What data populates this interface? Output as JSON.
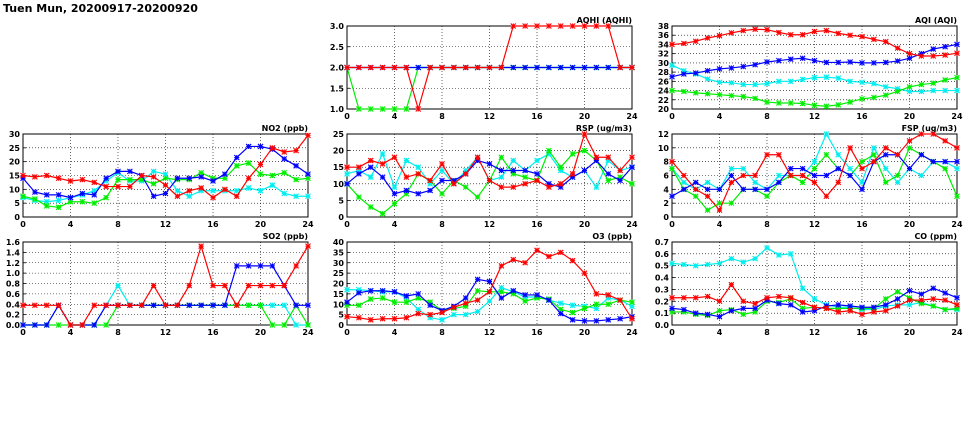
{
  "title": "Tuen Mun, 20200917-20200920",
  "colors": {
    "red": "#ff0000",
    "blue": "#0000ff",
    "green": "#00ee00",
    "cyan": "#00eeee"
  },
  "chart_data": [
    {
      "type": "line",
      "title": "AQHI (AQHI)",
      "ylim": [
        1,
        3
      ],
      "yticks": [
        "1.0",
        "1.5",
        "2.0",
        "2.5",
        "3.0"
      ],
      "xlim": [
        0,
        24
      ],
      "xticks": [
        "0",
        "4",
        "8",
        "12",
        "16",
        "20",
        "24"
      ],
      "series": [
        {
          "color": "cyan",
          "values": [
            2,
            2,
            2,
            2,
            2,
            2,
            2,
            2,
            2,
            2,
            2,
            2,
            2,
            2,
            2,
            2,
            2,
            2,
            2,
            2,
            2,
            2,
            2,
            2,
            2
          ]
        },
        {
          "color": "green",
          "values": [
            2,
            1,
            1,
            1,
            1,
            1,
            2,
            2,
            2,
            2,
            2,
            2,
            2,
            2,
            2,
            2,
            2,
            2,
            2,
            2,
            2,
            2,
            2,
            2,
            2
          ]
        },
        {
          "color": "blue",
          "values": [
            2,
            2,
            2,
            2,
            2,
            2,
            2,
            2,
            2,
            2,
            2,
            2,
            2,
            2,
            2,
            2,
            2,
            2,
            2,
            2,
            2,
            2,
            2,
            2,
            2
          ]
        },
        {
          "color": "red",
          "values": [
            2,
            2,
            2,
            2,
            2,
            2,
            1,
            2,
            2,
            2,
            2,
            2,
            2,
            2,
            3,
            3,
            3,
            3,
            3,
            3,
            3,
            3,
            3,
            2,
            2
          ]
        }
      ]
    },
    {
      "type": "line",
      "title": "AQI (AQI)",
      "ylim": [
        20,
        38
      ],
      "yticks": [
        "20",
        "22",
        "24",
        "26",
        "28",
        "30",
        "32",
        "34",
        "36",
        "38"
      ],
      "xlim": [
        0,
        24
      ],
      "xticks": [
        "0",
        "4",
        "8",
        "12",
        "16",
        "20",
        "24"
      ],
      "series": [
        {
          "color": "cyan",
          "values": [
            29.5,
            28.3,
            27.6,
            26.5,
            25.8,
            25.7,
            25.3,
            25.3,
            25.5,
            26,
            26,
            26.4,
            26.8,
            26.9,
            26.7,
            26,
            25.8,
            25.5,
            24.8,
            24.4,
            23.8,
            23.8,
            24,
            24,
            24
          ]
        },
        {
          "color": "green",
          "values": [
            24,
            23.8,
            23.5,
            23.3,
            23.1,
            22.9,
            22.7,
            22.3,
            21.5,
            21.3,
            21.3,
            21.2,
            20.8,
            20.6,
            20.9,
            21.5,
            22.2,
            22.5,
            23,
            23.8,
            24.8,
            25.3,
            25.6,
            26.3,
            26.8
          ]
        },
        {
          "color": "blue",
          "values": [
            27,
            27.6,
            27.8,
            28.3,
            28.7,
            28.9,
            29.2,
            29.6,
            30.2,
            30.5,
            30.8,
            31,
            30.5,
            30.1,
            30.1,
            30.2,
            30,
            30,
            30.1,
            30.4,
            31,
            32,
            33,
            33.5,
            34
          ]
        },
        {
          "color": "red",
          "values": [
            34,
            34.2,
            34.7,
            35.4,
            35.9,
            36.5,
            37,
            37.3,
            37.2,
            36.6,
            36.1,
            36.1,
            36.8,
            37,
            36.4,
            36,
            35.7,
            35.1,
            34.6,
            33.2,
            32,
            31.5,
            31.5,
            31.7,
            32.1
          ]
        }
      ]
    },
    {
      "type": "line",
      "title": "NO2 (ppb)",
      "ylim": [
        0,
        30
      ],
      "yticks": [
        "0",
        "5",
        "10",
        "15",
        "20",
        "25",
        "30"
      ],
      "xlim": [
        0,
        24
      ],
      "xticks": [
        "0",
        "4",
        "8",
        "12",
        "16",
        "20",
        "24"
      ],
      "series": [
        {
          "color": "cyan",
          "values": [
            7,
            6,
            5.5,
            6,
            7,
            8,
            9.5,
            13,
            16,
            13,
            13,
            16.5,
            15.5,
            9.5,
            7.5,
            9.5,
            9.5,
            9.5,
            9.5,
            10.5,
            9.5,
            11.5,
            8.5,
            7.5,
            7.5
          ]
        },
        {
          "color": "green",
          "values": [
            7.5,
            6.5,
            4,
            3.5,
            5.5,
            5.5,
            5,
            7,
            13.5,
            13.5,
            13.5,
            12,
            14,
            13.5,
            13.5,
            16,
            14,
            14,
            18.5,
            19.5,
            15.5,
            15,
            16,
            13.5,
            14
          ]
        },
        {
          "color": "blue",
          "values": [
            14,
            9,
            8,
            8,
            7,
            8.5,
            8,
            14,
            16.5,
            16.5,
            15,
            7.5,
            8.5,
            14,
            14,
            14.5,
            13,
            15.5,
            21.5,
            25.5,
            25.5,
            24.5,
            21,
            18.5,
            15.5
          ]
        },
        {
          "color": "red",
          "values": [
            15,
            14.5,
            15,
            14,
            13,
            13.5,
            12.5,
            11,
            11,
            11,
            15,
            14.5,
            11.5,
            7.5,
            9.5,
            10.5,
            7,
            10,
            7.5,
            14,
            19,
            25,
            23.5,
            24,
            29.5
          ]
        }
      ]
    },
    {
      "type": "line",
      "title": "RSP (ug/m3)",
      "ylim": [
        0,
        25
      ],
      "yticks": [
        "0",
        "5",
        "10",
        "15",
        "20",
        "25"
      ],
      "xlim": [
        0,
        24
      ],
      "xticks": [
        "0",
        "4",
        "8",
        "12",
        "16",
        "20",
        "24"
      ],
      "series": [
        {
          "color": "cyan",
          "values": [
            13,
            14,
            12,
            19,
            9,
            17,
            15,
            10,
            14,
            10,
            14,
            18,
            11,
            12,
            17,
            14,
            17,
            19,
            14,
            12,
            14,
            9,
            17,
            14,
            15
          ]
        },
        {
          "color": "green",
          "values": [
            10,
            6,
            3,
            1,
            4,
            7,
            13,
            11,
            7,
            11,
            9,
            6,
            11,
            18,
            13,
            12,
            11,
            20,
            15,
            19,
            20,
            17,
            11,
            12,
            10
          ]
        },
        {
          "color": "blue",
          "values": [
            10,
            13,
            15,
            12,
            7,
            8,
            7,
            8,
            11,
            11,
            13,
            17,
            16,
            14,
            14,
            14,
            13,
            10,
            9,
            12,
            14,
            17,
            13,
            11,
            15
          ]
        },
        {
          "color": "red",
          "values": [
            15,
            15,
            17,
            16,
            18,
            12,
            13,
            11,
            16,
            10,
            13,
            18,
            11,
            9,
            9,
            10,
            11,
            9,
            10,
            13,
            25,
            18,
            18,
            14,
            18
          ]
        }
      ]
    },
    {
      "type": "line",
      "title": "FSP (ug/m3)",
      "ylim": [
        0,
        12
      ],
      "yticks": [
        "0",
        "2",
        "4",
        "6",
        "8",
        "10",
        "12"
      ],
      "xlim": [
        0,
        24
      ],
      "xticks": [
        "0",
        "4",
        "8",
        "12",
        "16",
        "20",
        "24"
      ],
      "series": [
        {
          "color": "cyan",
          "values": [
            7,
            5,
            4,
            5,
            4,
            7,
            7,
            5,
            4,
            6,
            6,
            6,
            8,
            12,
            9,
            7,
            5,
            10,
            7,
            5,
            7,
            6,
            8,
            8,
            7
          ]
        },
        {
          "color": "green",
          "values": [
            7,
            4,
            3,
            1,
            2,
            2,
            4,
            4,
            3,
            5,
            6,
            5,
            7,
            9,
            7,
            6,
            8,
            9,
            5,
            6,
            10,
            9,
            8,
            7,
            3
          ]
        },
        {
          "color": "blue",
          "values": [
            3,
            4,
            5,
            4,
            4,
            6,
            4,
            4,
            4,
            5,
            7,
            7,
            6,
            6,
            7,
            6,
            4,
            8,
            9,
            9,
            7,
            9,
            8,
            8,
            8
          ]
        },
        {
          "color": "red",
          "values": [
            8,
            6,
            4,
            3,
            1,
            5,
            6,
            6,
            9,
            9,
            6,
            6,
            5,
            3,
            5,
            10,
            7,
            8,
            10,
            9,
            11,
            12,
            12,
            11,
            10
          ]
        }
      ]
    },
    {
      "type": "line",
      "title": "SO2 (ppb)",
      "ylim": [
        0,
        1.6
      ],
      "yticks": [
        "0.0",
        "0.2",
        "0.4",
        "0.6",
        "0.8",
        "1.0",
        "1.2",
        "1.4",
        "1.6"
      ],
      "xlim": [
        0,
        24
      ],
      "xticks": [
        "0",
        "4",
        "8",
        "12",
        "16",
        "20",
        "24"
      ],
      "series": [
        {
          "color": "cyan",
          "values": [
            0,
            0,
            0,
            0.38,
            0,
            0,
            0,
            0.38,
            0.76,
            0.38,
            0.38,
            0.38,
            0.38,
            0.38,
            0.38,
            0.38,
            0.38,
            0.38,
            0.38,
            0.38,
            0.38,
            0.38,
            0.38,
            0,
            0
          ]
        },
        {
          "color": "green",
          "values": [
            0,
            0,
            0,
            0,
            0,
            0,
            0,
            0,
            0.38,
            0.38,
            0.38,
            0.38,
            0.38,
            0.38,
            0.38,
            0.38,
            0.38,
            0.38,
            0.38,
            0.38,
            0.38,
            0,
            0,
            0.38,
            0
          ]
        },
        {
          "color": "blue",
          "values": [
            0,
            0,
            0,
            0.38,
            0,
            0,
            0,
            0.38,
            0.38,
            0.38,
            0.38,
            0.38,
            0.38,
            0.38,
            0.38,
            0.38,
            0.38,
            0.38,
            1.14,
            1.14,
            1.14,
            1.14,
            0.76,
            0.38,
            0.38
          ]
        },
        {
          "color": "red",
          "values": [
            0.38,
            0.38,
            0.38,
            0.38,
            0,
            0,
            0.38,
            0.38,
            0.38,
            0.38,
            0.38,
            0.76,
            0.38,
            0.38,
            0.76,
            1.52,
            0.76,
            0.76,
            0.38,
            0.76,
            0.76,
            0.76,
            0.76,
            1.14,
            1.52
          ]
        }
      ]
    },
    {
      "type": "line",
      "title": "O3 (ppb)",
      "ylim": [
        0,
        40
      ],
      "yticks": [
        "0",
        "5",
        "10",
        "15",
        "20",
        "25",
        "30",
        "35",
        "40"
      ],
      "xlim": [
        0,
        24
      ],
      "xticks": [
        "0",
        "4",
        "8",
        "12",
        "16",
        "20",
        "24"
      ],
      "series": [
        {
          "color": "cyan",
          "values": [
            17,
            17,
            16.5,
            16,
            16,
            13,
            7.5,
            3.5,
            2.5,
            5,
            5,
            6.5,
            11.5,
            18,
            16,
            13.5,
            13.5,
            12,
            10.5,
            9.5,
            9,
            8,
            13,
            12,
            9
          ]
        },
        {
          "color": "green",
          "values": [
            9.5,
            9.5,
            12.5,
            13,
            11,
            11,
            13,
            11,
            7,
            8,
            9,
            16.5,
            16,
            16,
            15,
            11.5,
            13,
            12.5,
            7.5,
            6,
            8,
            10,
            10,
            12,
            11
          ]
        },
        {
          "color": "blue",
          "values": [
            11,
            15.5,
            16.5,
            16.5,
            16,
            14,
            15,
            9.5,
            7,
            9,
            13,
            22,
            21,
            13,
            16.5,
            14.5,
            14.5,
            12,
            5.5,
            2.5,
            2,
            2,
            2.5,
            3,
            4
          ]
        },
        {
          "color": "red",
          "values": [
            4,
            3.5,
            2.5,
            3,
            3,
            3.5,
            5.5,
            5,
            6,
            8.5,
            10.5,
            12,
            16,
            28.5,
            31.5,
            30,
            36,
            33,
            35,
            31,
            25,
            15,
            14.5,
            12,
            3
          ]
        }
      ]
    },
    {
      "type": "line",
      "title": "CO (ppm)",
      "ylim": [
        0,
        0.7
      ],
      "yticks": [
        "0.0",
        "0.1",
        "0.2",
        "0.3",
        "0.4",
        "0.5",
        "0.6",
        "0.7"
      ],
      "xlim": [
        0,
        24
      ],
      "xticks": [
        "0",
        "4",
        "8",
        "12",
        "16",
        "20",
        "24"
      ],
      "series": [
        {
          "color": "cyan",
          "values": [
            0.52,
            0.51,
            0.5,
            0.51,
            0.52,
            0.56,
            0.53,
            0.56,
            0.65,
            0.59,
            0.6,
            0.31,
            0.22,
            0.17,
            0.15,
            0.15,
            0.13,
            0.13,
            0.16,
            0.17,
            0.17,
            0.19,
            0.16,
            0.13,
            0.13
          ]
        },
        {
          "color": "green",
          "values": [
            0.11,
            0.11,
            0.09,
            0.08,
            0.12,
            0.13,
            0.09,
            0.11,
            0.2,
            0.19,
            0.22,
            0.14,
            0.15,
            0.14,
            0.14,
            0.14,
            0.14,
            0.14,
            0.22,
            0.28,
            0.23,
            0.18,
            0.16,
            0.13,
            0.14
          ]
        },
        {
          "color": "blue",
          "values": [
            0.14,
            0.13,
            0.1,
            0.09,
            0.07,
            0.12,
            0.14,
            0.14,
            0.21,
            0.18,
            0.17,
            0.11,
            0.12,
            0.16,
            0.17,
            0.16,
            0.15,
            0.15,
            0.17,
            0.22,
            0.29,
            0.26,
            0.31,
            0.27,
            0.23
          ]
        },
        {
          "color": "red",
          "values": [
            0.23,
            0.23,
            0.23,
            0.24,
            0.2,
            0.34,
            0.2,
            0.18,
            0.23,
            0.24,
            0.23,
            0.19,
            0.15,
            0.14,
            0.11,
            0.12,
            0.09,
            0.11,
            0.12,
            0.16,
            0.21,
            0.21,
            0.22,
            0.21,
            0.17
          ]
        }
      ]
    }
  ]
}
